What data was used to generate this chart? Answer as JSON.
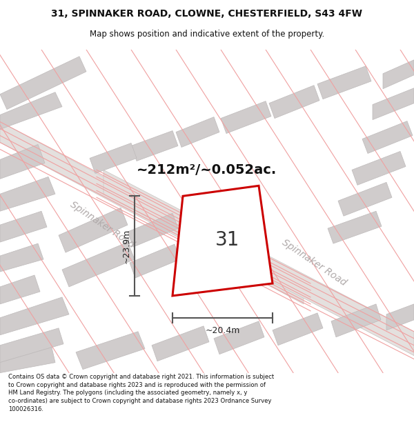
{
  "title_line1": "31, SPINNAKER ROAD, CLOWNE, CHESTERFIELD, S43 4FW",
  "title_line2": "Map shows position and indicative extent of the property.",
  "area_text": "~212m²/~0.052ac.",
  "plot_number": "31",
  "dim_width": "~20.4m",
  "dim_height": "~23.9m",
  "map_bg": "#f2f0f0",
  "plot_stroke": "#cc0000",
  "plot_fill": "#ffffff",
  "dim_color": "#555555",
  "footer_text": "Contains OS data © Crown copyright and database right 2021. This information is subject to Crown copyright and database rights 2023 and is reproduced with the permission of HM Land Registry. The polygons (including the associated geometry, namely x, y co-ordinates) are subject to Crown copyright and database rights 2023 Ordnance Survey 100026316.",
  "pink_line_color": "#f0a0a0",
  "road_label_color": "#b0aaaa",
  "road_band_color": "#e4e0de",
  "gray_block_color": "#d0cccc",
  "gray_block_edge": "#bebaba"
}
